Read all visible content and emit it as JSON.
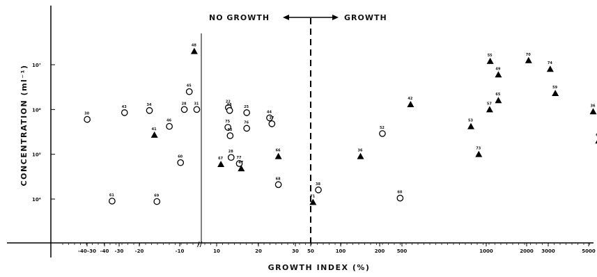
{
  "chart_data": {
    "type": "scatter",
    "xlabel": "GROWTH  INDEX (%)",
    "ylabel": "CONCENTRATION  (ml⁻¹)",
    "x_scale": "piecewise: linear below 10 (axis break), log from 10 to 5000+",
    "y_scale": "log",
    "ylim": [
      5000,
      40000000
    ],
    "x_ticks": [
      "-40–30",
      "-40",
      "-30",
      "-20",
      "-10",
      "10",
      "20",
      "30",
      "50",
      "100",
      "200",
      "500",
      "1000",
      "2000",
      "3000",
      "5000"
    ],
    "y_ticks": [
      {
        "value": 10000,
        "label": "10⁴"
      },
      {
        "value": 100000,
        "label": "10⁵"
      },
      {
        "value": 1000000,
        "label": "10⁶"
      },
      {
        "value": 10000000,
        "label": "10⁷"
      }
    ],
    "annotations": {
      "no_growth": "NO GROWTH",
      "growth": "GROWTH"
    },
    "growth_threshold_x": 50,
    "series": [
      {
        "marker": "circle",
        "points": [
          {
            "x": -48,
            "y": 600000,
            "label": "30"
          },
          {
            "x": -33,
            "y": 850000,
            "label": "43"
          },
          {
            "x": -23,
            "y": 950000,
            "label": "34"
          },
          {
            "x": -15,
            "y": 420000,
            "label": "46"
          },
          {
            "x": -7,
            "y": 2500000,
            "label": "45"
          },
          {
            "x": -9,
            "y": 1000000,
            "label": "28"
          },
          {
            "x": -4,
            "y": 1000000,
            "label": "31"
          },
          {
            "x": 8.7,
            "y": 1100000,
            "label": "22"
          },
          {
            "x": 9.2,
            "y": 950000,
            "label": "38"
          },
          {
            "x": 8.5,
            "y": 400000,
            "label": "75"
          },
          {
            "x": 9.4,
            "y": 260000,
            "label": "33"
          },
          {
            "x": 9.8,
            "y": 85000,
            "label": "28"
          },
          {
            "x": -10.5,
            "y": 65000,
            "label": "60"
          },
          {
            "x": -38,
            "y": 9000,
            "label": "61"
          },
          {
            "x": -20,
            "y": 8800,
            "label": "69"
          },
          {
            "x": 15,
            "y": 62000,
            "label": "77"
          },
          {
            "x": 17,
            "y": 380000,
            "label": "76"
          },
          {
            "x": 17,
            "y": 850000,
            "label": "25"
          },
          {
            "x": 25,
            "y": 650000,
            "label": "44"
          },
          {
            "x": 26,
            "y": 480000,
            "label": "37"
          },
          {
            "x": 29,
            "y": 21000,
            "label": "68"
          },
          {
            "x": 57,
            "y": 16000,
            "label": "38"
          },
          {
            "x": 170,
            "y": 290000,
            "label": "52"
          },
          {
            "x": 230,
            "y": 10500,
            "label": "60"
          }
        ]
      },
      {
        "marker": "triangle",
        "points": [
          {
            "x": -5,
            "y": 20000000,
            "label": "48"
          },
          {
            "x": -21,
            "y": 270000,
            "label": "41"
          },
          {
            "x": 11,
            "y": 60000,
            "label": "67"
          },
          {
            "x": 15.5,
            "y": 48000,
            "label": "47"
          },
          {
            "x": 29,
            "y": 90000,
            "label": "66"
          },
          {
            "x": 52,
            "y": 8500,
            "label": "71"
          },
          {
            "x": 117,
            "y": 90000,
            "label": "36"
          },
          {
            "x": 275,
            "y": 1300000,
            "label": "42"
          },
          {
            "x": 770,
            "y": 420000,
            "label": "53"
          },
          {
            "x": 880,
            "y": 100000,
            "label": "73"
          },
          {
            "x": 1060,
            "y": 1000000,
            "label": "57"
          },
          {
            "x": 1070,
            "y": 12000000,
            "label": "55"
          },
          {
            "x": 1230,
            "y": 6000000,
            "label": "49"
          },
          {
            "x": 1230,
            "y": 1600000,
            "label": "65"
          },
          {
            "x": 2060,
            "y": 12500000,
            "label": "70"
          },
          {
            "x": 2980,
            "y": 8000000,
            "label": "74"
          },
          {
            "x": 3250,
            "y": 2300000,
            "label": "59"
          },
          {
            "x": 6200,
            "y": 900000,
            "label": "36"
          },
          {
            "x": 6800,
            "y": 200000,
            "label": "67"
          }
        ]
      }
    ]
  }
}
